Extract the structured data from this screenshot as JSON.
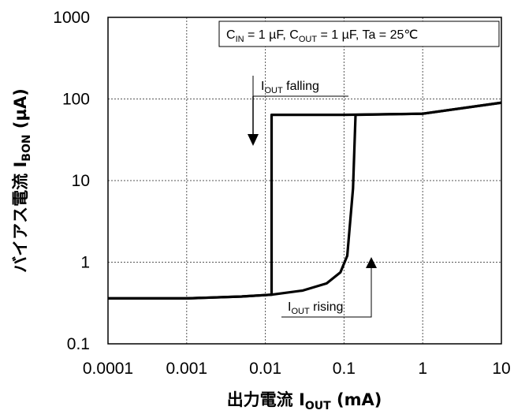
{
  "chart_data": {
    "type": "line",
    "x_scale": "log",
    "y_scale": "log",
    "xlim": [
      0.0001,
      10
    ],
    "ylim": [
      0.1,
      1000
    ],
    "grid": true,
    "x_ticks": [
      "0.0001",
      "0.001",
      "0.01",
      "0.1",
      "1",
      "10"
    ],
    "y_ticks": [
      "0.1",
      "1",
      "10",
      "100",
      "1000"
    ],
    "xlabel": {
      "jp": "出力電流",
      "sym": "I",
      "sub": "OUT",
      "unit": "(mA)"
    },
    "ylabel": {
      "jp": "バイアス電流",
      "sym": "I",
      "sub": "BON",
      "unit": "(µA)"
    },
    "condition": {
      "cin": "C",
      "cin_sub": "IN",
      "cin_val": " = 1 µF, ",
      "cout": "C",
      "cout_sub": "OUT",
      "cout_val": " = 1 µF, Ta = 25℃"
    },
    "annotations": {
      "falling": {
        "sym": "I",
        "sub": "OUT",
        "text": " falling"
      },
      "rising": {
        "sym": "I",
        "sub": "OUT",
        "text": " rising"
      }
    },
    "series": [
      {
        "points": [
          [
            0.0001,
            0.36
          ],
          [
            0.001,
            0.36
          ],
          [
            0.005,
            0.38
          ],
          [
            0.012,
            0.4
          ],
          [
            0.012,
            64
          ],
          [
            0.1,
            64
          ],
          [
            1,
            66
          ],
          [
            10,
            90
          ]
        ]
      },
      {
        "points": [
          [
            0.0001,
            0.36
          ],
          [
            0.001,
            0.36
          ],
          [
            0.005,
            0.38
          ],
          [
            0.012,
            0.4
          ],
          [
            0.03,
            0.45
          ],
          [
            0.06,
            0.55
          ],
          [
            0.09,
            0.75
          ],
          [
            0.11,
            1.2
          ],
          [
            0.13,
            8
          ],
          [
            0.14,
            64
          ],
          [
            1,
            66
          ],
          [
            10,
            90
          ]
        ]
      }
    ]
  }
}
